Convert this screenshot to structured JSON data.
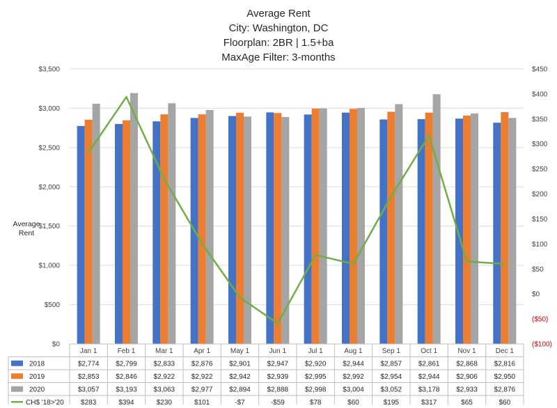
{
  "chart_data": {
    "type": "bar",
    "title_lines": [
      "Average Rent",
      "City: Washington, DC",
      "Floorplan:  2BR | 1.5+ba",
      "MaxAge Filter: 3-months"
    ],
    "ylabel": [
      "Average",
      "Rent"
    ],
    "categories": [
      "Jan 1",
      "Feb 1",
      "Mar 1",
      "Apr 1",
      "May 1",
      "Jun 1",
      "Jul 1",
      "Aug 1",
      "Sep 1",
      "Oct 1",
      "Nov 1",
      "Dec 1"
    ],
    "series": [
      {
        "name": "2018",
        "color": "#4472c4",
        "values": [
          2774,
          2799,
          2833,
          2876,
          2901,
          2947,
          2920,
          2944,
          2857,
          2861,
          2868,
          2816
        ],
        "labels": [
          "$2,774",
          "$2,799",
          "$2,833",
          "$2,876",
          "$2,901",
          "$2,947",
          "$2,920",
          "$2,944",
          "$2,857",
          "$2,861",
          "$2,868",
          "$2,816"
        ]
      },
      {
        "name": "2019",
        "color": "#ed7d31",
        "values": [
          2853,
          2846,
          2922,
          2922,
          2942,
          2939,
          2995,
          2992,
          2954,
          2944,
          2906,
          2950
        ],
        "labels": [
          "$2,853",
          "$2,846",
          "$2,922",
          "$2,922",
          "$2,942",
          "$2,939",
          "$2,995",
          "$2,992",
          "$2,954",
          "$2,944",
          "$2,906",
          "$2,950"
        ]
      },
      {
        "name": "2020",
        "color": "#a5a5a5",
        "values": [
          3057,
          3193,
          3063,
          2977,
          2894,
          2888,
          2998,
          3004,
          3052,
          3178,
          2933,
          2876
        ],
        "labels": [
          "$3,057",
          "$3,193",
          "$3,063",
          "$2,977",
          "$2,894",
          "$2,888",
          "$2,998",
          "$3,004",
          "$3,052",
          "$3,178",
          "$2,933",
          "$2,876"
        ]
      }
    ],
    "line_series": {
      "name": "CH$ '18>'20",
      "color": "#70ad47",
      "axis": "secondary",
      "values": [
        283,
        394,
        230,
        101,
        -7,
        -59,
        78,
        60,
        195,
        317,
        65,
        60
      ],
      "labels": [
        "$283",
        "$394",
        "$230",
        "$101",
        "-$7",
        "-$59",
        "$78",
        "$60",
        "$195",
        "$317",
        "$65",
        "$60"
      ]
    },
    "ylim": [
      0,
      3500
    ],
    "ylim_secondary": [
      -100,
      450
    ],
    "primary_ticks": [
      "$0",
      "$500",
      "$1,000",
      "$1,500",
      "$2,000",
      "$2,500",
      "$3,000",
      "$3,500"
    ],
    "secondary_ticks": [
      "($100)",
      "($50)",
      "$0",
      "$50",
      "$100",
      "$150",
      "$200",
      "$250",
      "$300",
      "$350",
      "$400",
      "$450"
    ],
    "grid": true,
    "legend": "data-table-bottom"
  }
}
